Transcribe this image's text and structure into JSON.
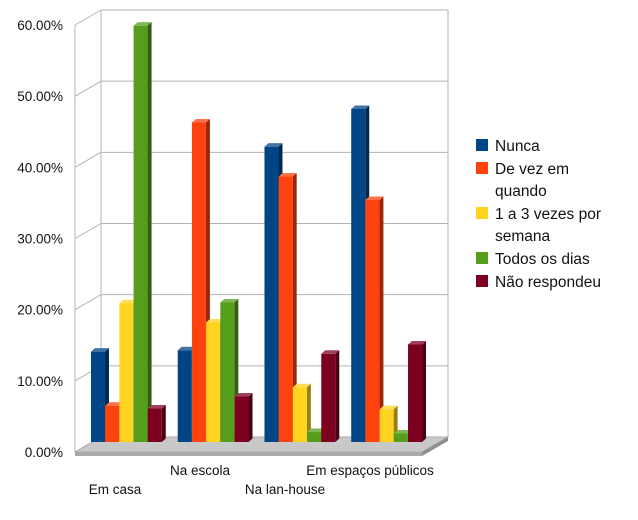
{
  "chart_data": {
    "type": "bar",
    "title": "",
    "xlabel": "",
    "ylabel": "",
    "ylim": [
      0,
      60
    ],
    "y_ticks": [
      "0.00%",
      "10.00%",
      "20.00%",
      "30.00%",
      "40.00%",
      "50.00%",
      "60.00%"
    ],
    "grid": true,
    "legend_position": "right",
    "categories": [
      "Em casa",
      "Na escola",
      "Na lan-house",
      "Em espaços públicos"
    ],
    "series": [
      {
        "name": "Nunca",
        "color": "#004586",
        "values": [
          12.7,
          12.9,
          41.5,
          46.8
        ]
      },
      {
        "name": "De vez em quando",
        "color": "#ff420e",
        "values": [
          5.1,
          44.9,
          37.3,
          34.0
        ]
      },
      {
        "name": "1 a 3 vezes por semana",
        "color": "#ffd320",
        "values": [
          19.5,
          16.8,
          7.7,
          4.6
        ]
      },
      {
        "name": "Todos os dias",
        "color": "#579d1c",
        "values": [
          58.5,
          19.6,
          1.4,
          1.2
        ]
      },
      {
        "name": "Não respondeu",
        "color": "#7e0021",
        "values": [
          4.7,
          6.4,
          12.4,
          13.7
        ]
      }
    ]
  },
  "legend": {
    "items": [
      {
        "lines": [
          "Nunca"
        ]
      },
      {
        "lines": [
          "De vez em",
          "quando"
        ]
      },
      {
        "lines": [
          "1 a 3 vezes por",
          "semana"
        ]
      },
      {
        "lines": [
          "Todos os dias"
        ]
      },
      {
        "lines": [
          "Não respondeu"
        ]
      }
    ]
  }
}
